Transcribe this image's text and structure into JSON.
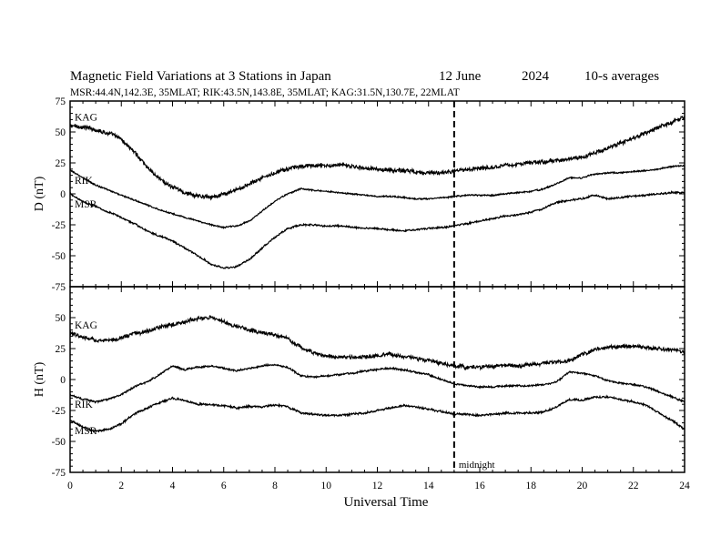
{
  "header": {
    "title": "Magnetic Field Variations at 3 Stations in Japan",
    "date": "12 June",
    "year": "2024",
    "averaging": "10-s averages",
    "stations_line": "MSR:44.4N,142.3E, 35MLAT;  RIK:43.5N,143.8E, 35MLAT;  KAG:31.5N,130.7E, 22MLAT"
  },
  "chart_data": [
    {
      "type": "line",
      "panel": "top",
      "ylabel": "D (nT)",
      "ylim": [
        -75,
        75
      ],
      "yticks": [
        75,
        50,
        25,
        0,
        -25,
        -50,
        -75
      ],
      "xlim": [
        0,
        24
      ],
      "series": [
        {
          "name": "KAG",
          "x": [
            0,
            0.5,
            1,
            1.5,
            2,
            2.5,
            3,
            3.5,
            4,
            4.5,
            5,
            5.5,
            6,
            6.5,
            7,
            7.5,
            8,
            8.5,
            9,
            9.5,
            10,
            10.5,
            11,
            11.5,
            12,
            12.5,
            13,
            13.5,
            14,
            14.5,
            15,
            15.5,
            16,
            16.5,
            17,
            17.5,
            18,
            18.5,
            19,
            19.5,
            20,
            20.5,
            21,
            21.5,
            22,
            22.5,
            23,
            23.5,
            24
          ],
          "values": [
            55,
            54,
            52,
            49,
            44,
            34,
            22,
            12,
            5,
            1,
            -2,
            -2,
            -1,
            3,
            8,
            13,
            17,
            20,
            22,
            23,
            23,
            23,
            22,
            21,
            20,
            19,
            19,
            18,
            17,
            17,
            18,
            20,
            21,
            22,
            23,
            24,
            25,
            26,
            27,
            28,
            30,
            33,
            37,
            41,
            45,
            49,
            54,
            58,
            62
          ],
          "noise": 1.4
        },
        {
          "name": "RIK",
          "x": [
            0,
            0.5,
            1,
            1.5,
            2,
            2.5,
            3,
            3.5,
            4,
            4.5,
            5,
            5.5,
            6,
            6.5,
            7,
            7.5,
            8,
            8.5,
            9,
            9.5,
            10,
            10.5,
            11,
            11.5,
            12,
            12.5,
            13,
            13.5,
            14,
            14.5,
            15,
            15.5,
            16,
            16.5,
            17,
            17.5,
            18,
            18.5,
            19,
            19.5,
            20,
            20.5,
            21,
            21.5,
            22,
            22.5,
            23,
            23.5,
            24
          ],
          "values": [
            19,
            13,
            7,
            3,
            -1,
            -5,
            -9,
            -13,
            -16,
            -19,
            -22,
            -25,
            -27,
            -26,
            -22,
            -14,
            -6,
            0,
            4,
            3,
            2,
            1,
            0,
            -1,
            -2,
            -2,
            -3,
            -4,
            -4,
            -3,
            -2,
            -1,
            -1,
            -1,
            0,
            1,
            2,
            4,
            8,
            13,
            13,
            16,
            17,
            17,
            18,
            19,
            20,
            22,
            23
          ],
          "noise": 0.5
        },
        {
          "name": "MSR",
          "x": [
            0,
            0.5,
            1,
            1.5,
            2,
            2.5,
            3,
            3.5,
            4,
            4.5,
            5,
            5.5,
            6,
            6.5,
            7,
            7.5,
            8,
            8.5,
            9,
            9.5,
            10,
            10.5,
            11,
            11.5,
            12,
            12.5,
            13,
            13.5,
            14,
            14.5,
            15,
            15.5,
            16,
            16.5,
            17,
            17.5,
            18,
            18.5,
            19,
            19.5,
            20,
            20.5,
            21,
            21.5,
            22,
            22.5,
            23,
            23.5,
            24
          ],
          "values": [
            0,
            -6,
            -10,
            -15,
            -19,
            -24,
            -30,
            -34,
            -38,
            -44,
            -50,
            -57,
            -60,
            -59,
            -53,
            -44,
            -35,
            -28,
            -25,
            -25,
            -26,
            -26,
            -27,
            -28,
            -28,
            -29,
            -30,
            -29,
            -28,
            -27,
            -26,
            -24,
            -22,
            -20,
            -18,
            -17,
            -15,
            -12,
            -7,
            -5,
            -4,
            -1,
            -4,
            -3,
            -2,
            -1,
            0,
            1,
            1
          ],
          "noise": 0.6
        }
      ]
    },
    {
      "type": "line",
      "panel": "bottom",
      "ylabel": "H (nT)",
      "ylim": [
        -75,
        75
      ],
      "yticks": [
        50,
        25,
        0,
        -25,
        -50,
        -75
      ],
      "xlim": [
        0,
        24
      ],
      "xlabel": "Universal Time",
      "xticks": [
        0,
        2,
        4,
        6,
        8,
        10,
        12,
        14,
        16,
        18,
        20,
        22,
        24
      ],
      "marker": {
        "x": 15,
        "label": "midnight"
      },
      "series": [
        {
          "name": "KAG",
          "x": [
            0,
            0.5,
            1,
            1.5,
            2,
            2.5,
            3,
            3.5,
            4,
            4.5,
            5,
            5.5,
            6,
            6.5,
            7,
            7.5,
            8,
            8.5,
            9,
            9.5,
            10,
            10.5,
            11,
            11.5,
            12,
            12.5,
            13,
            13.5,
            14,
            14.5,
            15,
            15.5,
            16,
            16.5,
            17,
            17.5,
            18,
            18.5,
            19,
            19.5,
            20,
            20.5,
            21,
            21.5,
            22,
            22.5,
            23,
            23.5,
            24
          ],
          "values": [
            37,
            34,
            32,
            31,
            34,
            37,
            39,
            42,
            45,
            47,
            49,
            50,
            47,
            43,
            40,
            38,
            36,
            33,
            26,
            22,
            19,
            18,
            18,
            18,
            19,
            20,
            19,
            17,
            15,
            13,
            11,
            10,
            10,
            11,
            11,
            11,
            12,
            13,
            14,
            15,
            20,
            24,
            26,
            27,
            27,
            26,
            25,
            24,
            22
          ],
          "noise": 1.3
        },
        {
          "name": "RIK",
          "x": [
            0,
            0.5,
            1,
            1.5,
            2,
            2.5,
            3,
            3.5,
            4,
            4.5,
            5,
            5.5,
            6,
            6.5,
            7,
            7.5,
            8,
            8.5,
            9,
            9.5,
            10,
            10.5,
            11,
            11.5,
            12,
            12.5,
            13,
            13.5,
            14,
            14.5,
            15,
            15.5,
            16,
            16.5,
            17,
            17.5,
            18,
            18.5,
            19,
            19.5,
            20,
            20.5,
            21,
            21.5,
            22,
            22.5,
            23,
            23.5,
            24
          ],
          "values": [
            -12,
            -16,
            -18,
            -16,
            -12,
            -6,
            -2,
            4,
            11,
            8,
            10,
            11,
            9,
            7,
            9,
            11,
            12,
            10,
            3,
            2,
            3,
            4,
            5,
            7,
            8,
            9,
            8,
            6,
            4,
            0,
            -3,
            -5,
            -6,
            -6,
            -5,
            -5,
            -5,
            -4,
            -2,
            6,
            5,
            3,
            -1,
            -3,
            -4,
            -6,
            -10,
            -14,
            -18
          ],
          "noise": 0.6
        },
        {
          "name": "MSR",
          "x": [
            0,
            0.5,
            1,
            1.5,
            2,
            2.5,
            3,
            3.5,
            4,
            4.5,
            5,
            5.5,
            6,
            6.5,
            7,
            7.5,
            8,
            8.5,
            9,
            9.5,
            10,
            10.5,
            11,
            11.5,
            12,
            12.5,
            13,
            13.5,
            14,
            14.5,
            15,
            15.5,
            16,
            16.5,
            17,
            17.5,
            18,
            18.5,
            19,
            19.5,
            20,
            20.5,
            21,
            21.5,
            22,
            22.5,
            23,
            23.5,
            24
          ],
          "values": [
            -33,
            -38,
            -42,
            -40,
            -36,
            -28,
            -23,
            -19,
            -15,
            -17,
            -20,
            -20,
            -21,
            -23,
            -22,
            -22,
            -21,
            -22,
            -27,
            -28,
            -29,
            -29,
            -28,
            -27,
            -25,
            -23,
            -21,
            -22,
            -24,
            -26,
            -28,
            -28,
            -29,
            -28,
            -27,
            -27,
            -27,
            -26,
            -22,
            -16,
            -17,
            -14,
            -14,
            -16,
            -18,
            -21,
            -27,
            -33,
            -40
          ],
          "noise": 0.7
        }
      ]
    }
  ]
}
